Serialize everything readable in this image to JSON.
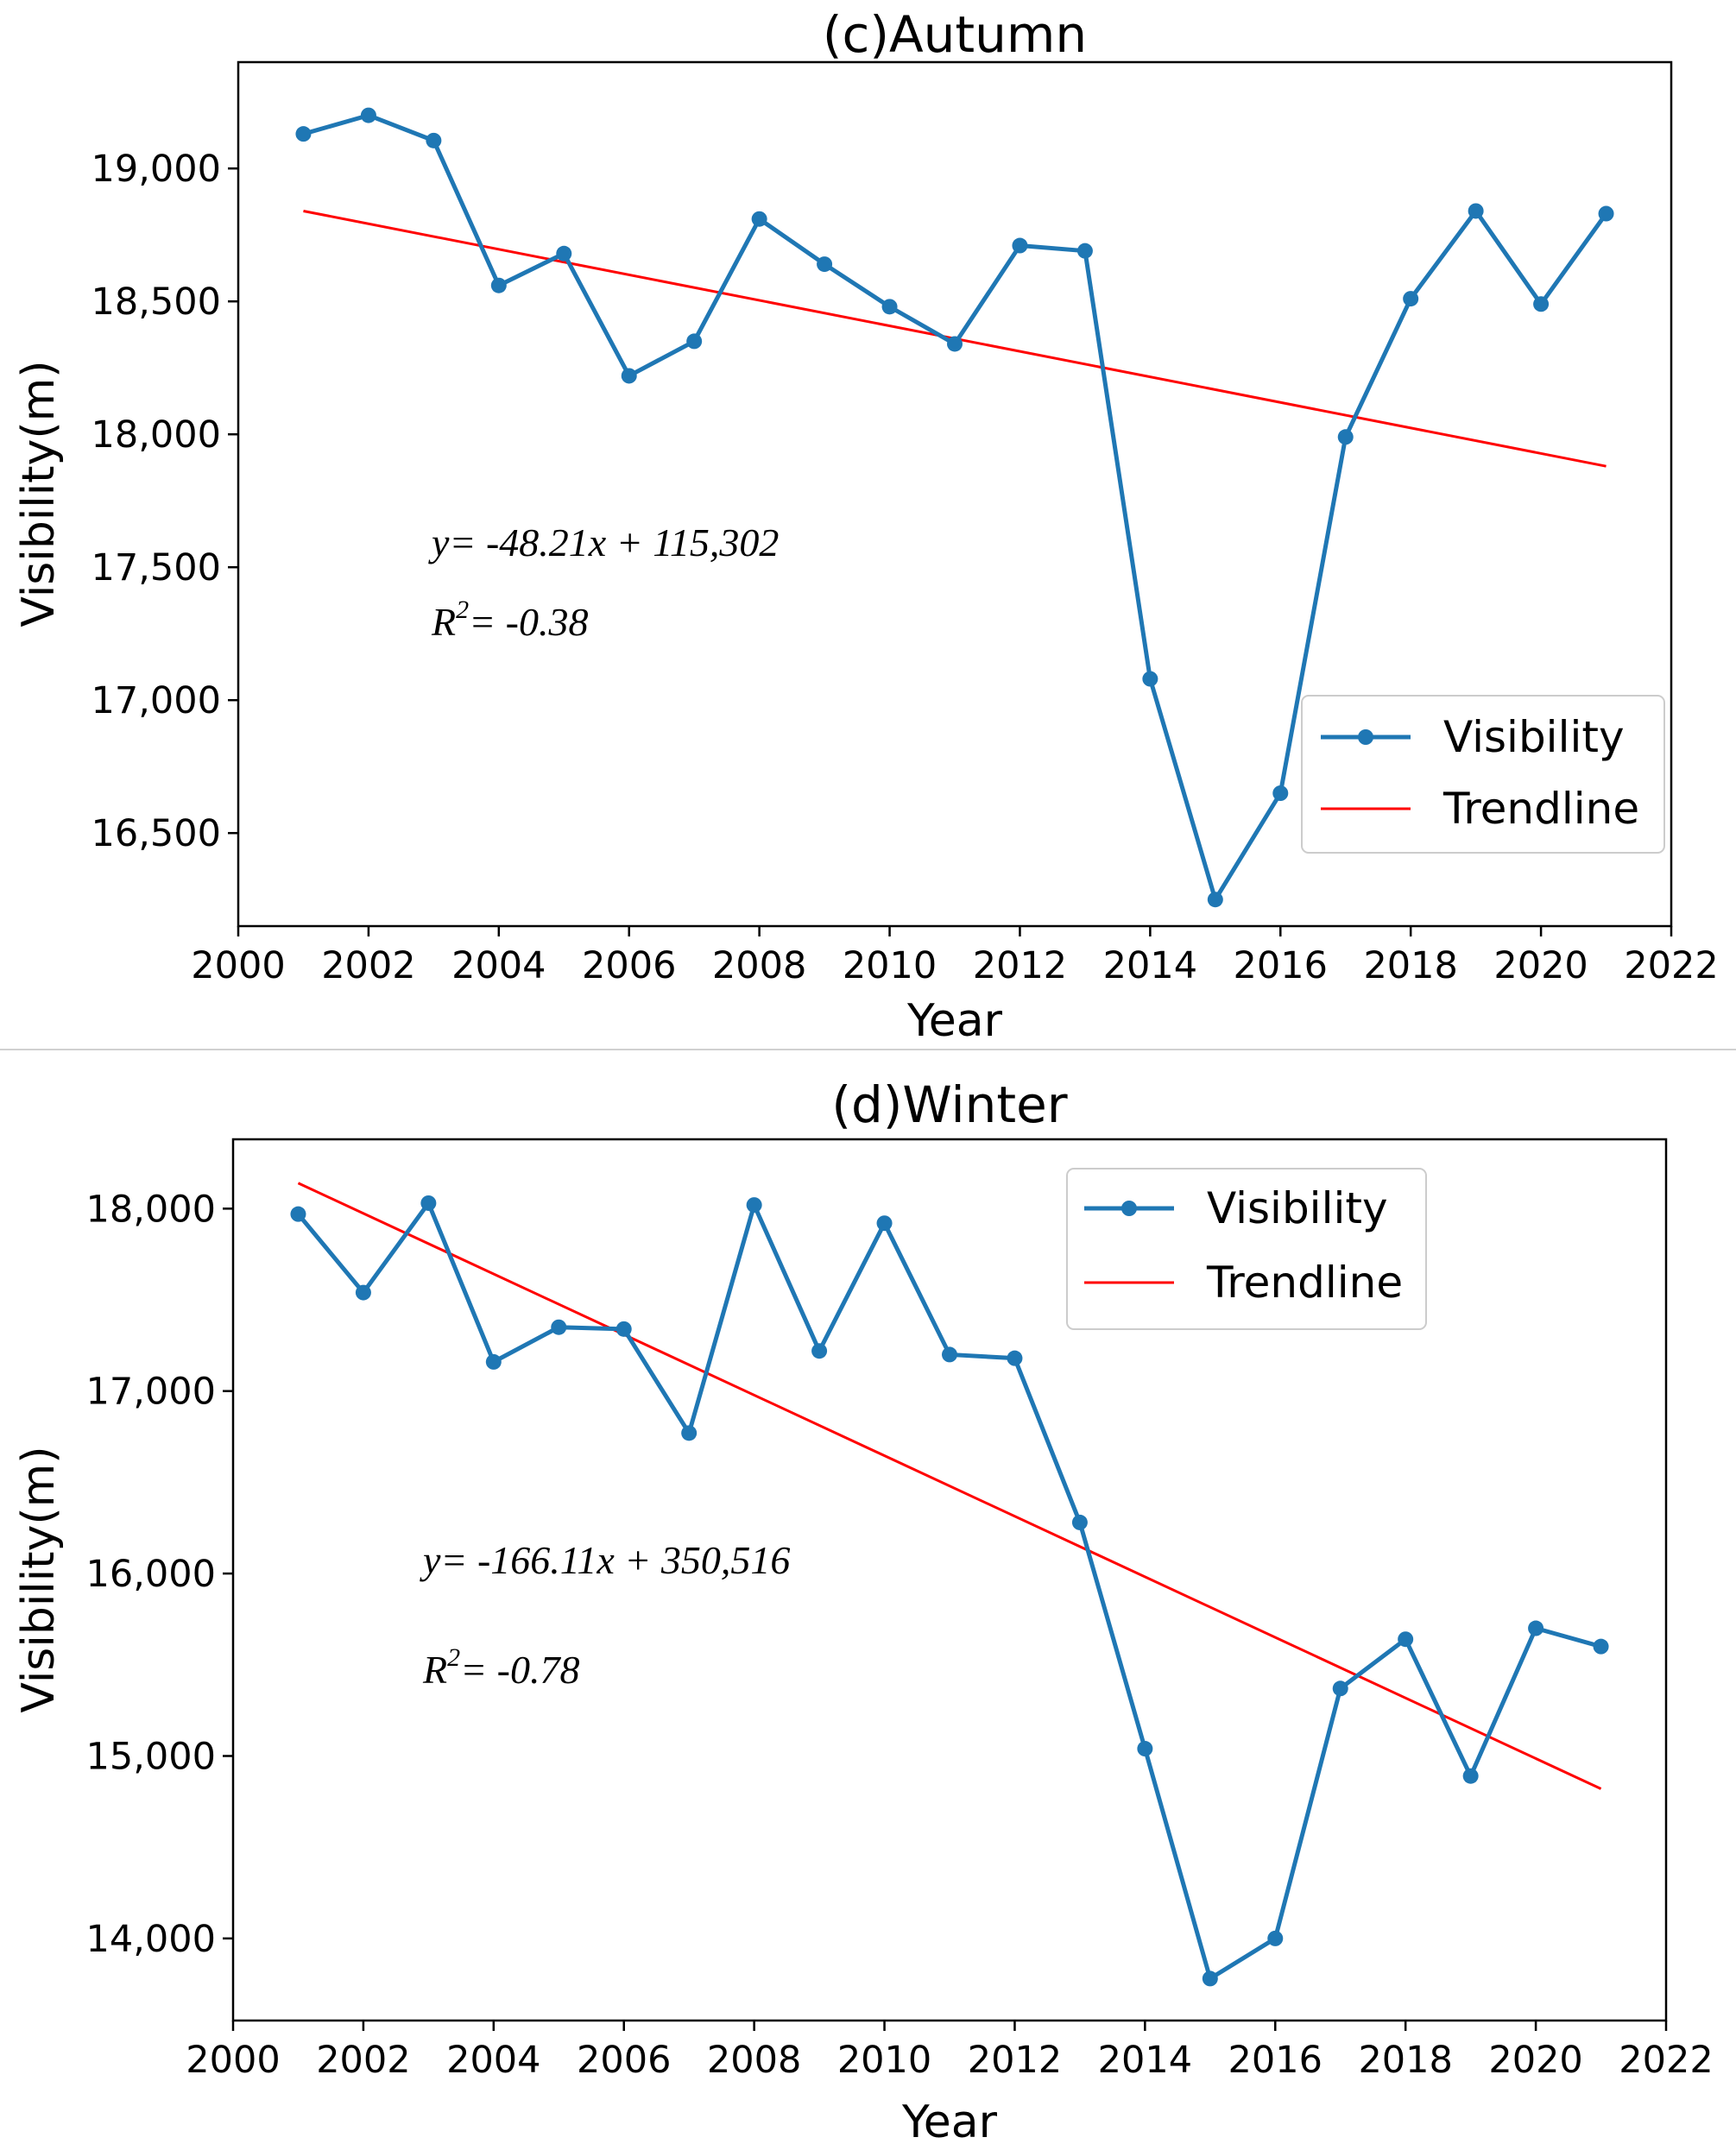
{
  "chart_data": [
    {
      "type": "line",
      "title": "(c)Autumn",
      "xlabel": "Year",
      "ylabel": "Visibility(m)",
      "xlim": [
        2000,
        2022
      ],
      "ylim": [
        16150,
        19400
      ],
      "x_ticks": [
        "2000",
        "2002",
        "2004",
        "2006",
        "2008",
        "2010",
        "2012",
        "2014",
        "2016",
        "2018",
        "2020",
        "2022"
      ],
      "y_ticks": [
        "16,500",
        "17,000",
        "17,500",
        "18,000",
        "18,500",
        "19,000"
      ],
      "y_tick_values": [
        16500,
        17000,
        17500,
        18000,
        18500,
        19000
      ],
      "legend_position": "lower-right",
      "series": [
        {
          "name": "Visibility",
          "color": "#1f77b4",
          "x": [
            2001,
            2002,
            2003,
            2004,
            2005,
            2006,
            2007,
            2008,
            2009,
            2010,
            2011,
            2012,
            2013,
            2014,
            2015,
            2016,
            2017,
            2018,
            2019,
            2020,
            2021
          ],
          "values": [
            19130,
            19200,
            19105,
            18560,
            18680,
            18220,
            18350,
            18810,
            18640,
            18480,
            18340,
            18710,
            18690,
            17080,
            16250,
            16650,
            17990,
            18510,
            18840,
            18490,
            18830
          ]
        },
        {
          "name": "Trendline",
          "color": "#ff0000",
          "x": [
            2001,
            2021
          ],
          "values": [
            18840,
            17880
          ]
        }
      ],
      "equation_line1": "y= -48.21x + 115,302",
      "equation_r_label": "R",
      "equation_r_sup": "2",
      "equation_r_value": "= -0.38"
    },
    {
      "type": "line",
      "title": "(d)Winter",
      "xlabel": "Year",
      "ylabel": "Visibility(m)",
      "xlim": [
        2000,
        2022
      ],
      "ylim": [
        13550,
        18380
      ],
      "x_ticks": [
        "2000",
        "2002",
        "2004",
        "2006",
        "2008",
        "2010",
        "2012",
        "2014",
        "2016",
        "2018",
        "2020",
        "2022"
      ],
      "y_ticks": [
        "14,000",
        "15,000",
        "16,000",
        "17,000",
        "18,000"
      ],
      "y_tick_values": [
        14000,
        15000,
        16000,
        17000,
        18000
      ],
      "legend_position": "upper-right",
      "series": [
        {
          "name": "Visibility",
          "color": "#1f77b4",
          "x": [
            2001,
            2002,
            2003,
            2004,
            2005,
            2006,
            2007,
            2008,
            2009,
            2010,
            2011,
            2012,
            2013,
            2014,
            2015,
            2016,
            2017,
            2018,
            2019,
            2020,
            2021
          ],
          "values": [
            17970,
            17540,
            18030,
            17160,
            17350,
            17340,
            16770,
            18020,
            17220,
            17920,
            17200,
            17180,
            16280,
            15040,
            13780,
            14000,
            15370,
            15640,
            14890,
            15700,
            15600
          ]
        },
        {
          "name": "Trendline",
          "color": "#ff0000",
          "x": [
            2001,
            2021
          ],
          "values": [
            18140,
            14820
          ]
        }
      ],
      "equation_line1": "y= -166.11x + 350,516",
      "equation_r_label": "R",
      "equation_r_sup": "2",
      "equation_r_value": "= -0.78"
    }
  ]
}
